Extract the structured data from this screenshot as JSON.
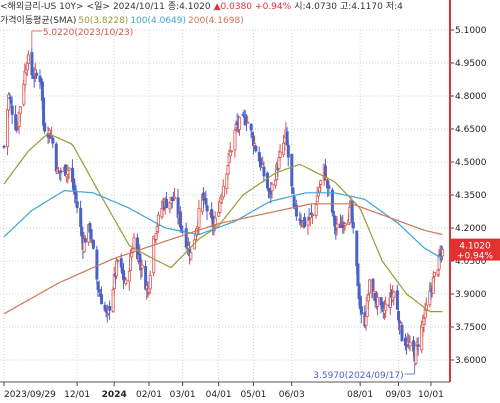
{
  "header": {
    "title": "<해외금리-US 10Y>",
    "period": "<일>",
    "date": "2024/10/11",
    "close": "종:4.1020",
    "change": "▲0.0380",
    "change_pct": "+0.94%",
    "open": "시:4.0730",
    "high": "고:4.1170",
    "low": "저:4"
  },
  "legend": {
    "label": "가격이동평균(SMA)",
    "ma50": "50(3.8228)",
    "ma100": "100(4.0649)",
    "ma200": "200(4.1698)"
  },
  "annotations": {
    "high_label": "5.0220(2023/10/23)",
    "low_label": "3.5970(2024/09/17)"
  },
  "price_badge": {
    "price": "4.1020",
    "change": "+0.94%"
  },
  "colors": {
    "up": "#d9534f",
    "down": "#4a63c5",
    "ma50": "#9a9a35",
    "ma100": "#3ca4d4",
    "ma200": "#cc7755",
    "axis": "#e53030",
    "grid": "#d4d4d4"
  },
  "chart_data": {
    "type": "candlestick",
    "instrument": "US 10Y",
    "ylim": [
      3.5,
      5.1
    ],
    "yticks": [
      "5.1000",
      "4.9500",
      "4.8000",
      "4.6500",
      "4.5000",
      "4.3500",
      "4.2000",
      "4.0500",
      "3.9000",
      "3.7500",
      "3.6000"
    ],
    "xticks": [
      {
        "date": "2023-09-29",
        "label": "2023/09/29",
        "bold": false
      },
      {
        "date": "2023-12-01",
        "label": "12/01",
        "bold": false
      },
      {
        "date": "2024-01-02",
        "label": "2024",
        "bold": true
      },
      {
        "date": "2024-02-01",
        "label": "02/01",
        "bold": false
      },
      {
        "date": "2024-03-01",
        "label": "03/01",
        "bold": false
      },
      {
        "date": "2024-04-01",
        "label": "04/01",
        "bold": false
      },
      {
        "date": "2024-05-01",
        "label": "05/01",
        "bold": false
      },
      {
        "date": "2024-06-03",
        "label": "06/03",
        "bold": false
      },
      {
        "date": "2024-08-01",
        "label": "08/01",
        "bold": false
      },
      {
        "date": "2024-09-03",
        "label": "09/03",
        "bold": false
      },
      {
        "date": "2024-10-01",
        "label": "10/01",
        "bold": false
      }
    ],
    "x_range": [
      "2023-09-29",
      "2024-10-14"
    ],
    "price_anchors": [
      [
        "2023-09-29",
        4.57
      ],
      [
        "2023-10-03",
        4.8
      ],
      [
        "2023-10-10",
        4.65
      ],
      [
        "2023-10-19",
        4.98
      ],
      [
        "2023-10-23",
        4.9
      ],
      [
        "2023-10-31",
        4.88
      ],
      [
        "2023-11-02",
        4.67
      ],
      [
        "2023-11-09",
        4.62
      ],
      [
        "2023-11-14",
        4.45
      ],
      [
        "2023-11-24",
        4.47
      ],
      [
        "2023-11-30",
        4.33
      ],
      [
        "2023-12-06",
        4.13
      ],
      [
        "2023-12-12",
        4.2
      ],
      [
        "2023-12-19",
        3.93
      ],
      [
        "2023-12-27",
        3.79
      ],
      [
        "2024-01-05",
        4.05
      ],
      [
        "2024-01-12",
        3.94
      ],
      [
        "2024-01-19",
        4.15
      ],
      [
        "2024-01-31",
        3.91
      ],
      [
        "2024-02-05",
        4.16
      ],
      [
        "2024-02-13",
        4.31
      ],
      [
        "2024-02-22",
        4.33
      ],
      [
        "2024-03-01",
        4.19
      ],
      [
        "2024-03-08",
        4.08
      ],
      [
        "2024-03-18",
        4.34
      ],
      [
        "2024-03-28",
        4.2
      ],
      [
        "2024-04-05",
        4.4
      ],
      [
        "2024-04-16",
        4.66
      ],
      [
        "2024-04-25",
        4.7
      ],
      [
        "2024-05-02",
        4.58
      ],
      [
        "2024-05-09",
        4.46
      ],
      [
        "2024-05-15",
        4.35
      ],
      [
        "2024-05-29",
        4.62
      ],
      [
        "2024-06-05",
        4.28
      ],
      [
        "2024-06-14",
        4.22
      ],
      [
        "2024-06-21",
        4.26
      ],
      [
        "2024-07-01",
        4.47
      ],
      [
        "2024-07-11",
        4.19
      ],
      [
        "2024-07-24",
        4.28
      ],
      [
        "2024-08-02",
        3.79
      ],
      [
        "2024-08-05",
        3.78
      ],
      [
        "2024-08-09",
        3.94
      ],
      [
        "2024-08-20",
        3.81
      ],
      [
        "2024-08-30",
        3.91
      ],
      [
        "2024-09-06",
        3.71
      ],
      [
        "2024-09-17",
        3.62
      ],
      [
        "2024-09-25",
        3.79
      ],
      [
        "2024-10-04",
        3.98
      ],
      [
        "2024-10-11",
        4.1
      ]
    ],
    "ohlc_last": {
      "date": "2024-10-11",
      "open": 4.073,
      "high": 4.117,
      "close": 4.102,
      "change": 0.038,
      "change_pct": 0.94
    },
    "annotated_high": {
      "date": "2023-10-23",
      "value": 5.022
    },
    "annotated_low": {
      "date": "2024-09-17",
      "value": 3.597
    },
    "moving_averages": [
      {
        "name": "50",
        "last": 3.8228,
        "color": "#9a9a35",
        "anchors": [
          [
            "2023-09-29",
            4.4
          ],
          [
            "2023-10-20",
            4.55
          ],
          [
            "2023-11-06",
            4.63
          ],
          [
            "2023-11-27",
            4.58
          ],
          [
            "2023-12-18",
            4.38
          ],
          [
            "2024-01-15",
            4.12
          ],
          [
            "2024-02-01",
            4.07
          ],
          [
            "2024-02-20",
            4.02
          ],
          [
            "2024-03-15",
            4.15
          ],
          [
            "2024-04-01",
            4.21
          ],
          [
            "2024-04-22",
            4.35
          ],
          [
            "2024-05-20",
            4.45
          ],
          [
            "2024-06-10",
            4.49
          ],
          [
            "2024-07-10",
            4.41
          ],
          [
            "2024-08-01",
            4.29
          ],
          [
            "2024-08-20",
            4.05
          ],
          [
            "2024-09-10",
            3.9
          ],
          [
            "2024-09-30",
            3.82
          ],
          [
            "2024-10-11",
            3.82
          ]
        ]
      },
      {
        "name": "100",
        "last": 4.0649,
        "color": "#3ca4d4",
        "anchors": [
          [
            "2023-09-29",
            4.16
          ],
          [
            "2023-10-23",
            4.28
          ],
          [
            "2023-11-20",
            4.37
          ],
          [
            "2023-12-15",
            4.36
          ],
          [
            "2024-01-15",
            4.29
          ],
          [
            "2024-02-15",
            4.2
          ],
          [
            "2024-03-15",
            4.17
          ],
          [
            "2024-04-15",
            4.23
          ],
          [
            "2024-05-15",
            4.32
          ],
          [
            "2024-06-15",
            4.36
          ],
          [
            "2024-07-10",
            4.36
          ],
          [
            "2024-08-05",
            4.33
          ],
          [
            "2024-09-03",
            4.22
          ],
          [
            "2024-09-25",
            4.11
          ],
          [
            "2024-10-11",
            4.06
          ]
        ]
      },
      {
        "name": "200",
        "last": 4.1698,
        "color": "#cc7755",
        "anchors": [
          [
            "2023-09-29",
            3.81
          ],
          [
            "2023-11-15",
            3.95
          ],
          [
            "2024-01-01",
            4.06
          ],
          [
            "2024-02-15",
            4.14
          ],
          [
            "2024-04-01",
            4.22
          ],
          [
            "2024-05-15",
            4.27
          ],
          [
            "2024-06-20",
            4.31
          ],
          [
            "2024-07-25",
            4.31
          ],
          [
            "2024-08-25",
            4.25
          ],
          [
            "2024-09-25",
            4.19
          ],
          [
            "2024-10-11",
            4.17
          ]
        ]
      }
    ]
  }
}
